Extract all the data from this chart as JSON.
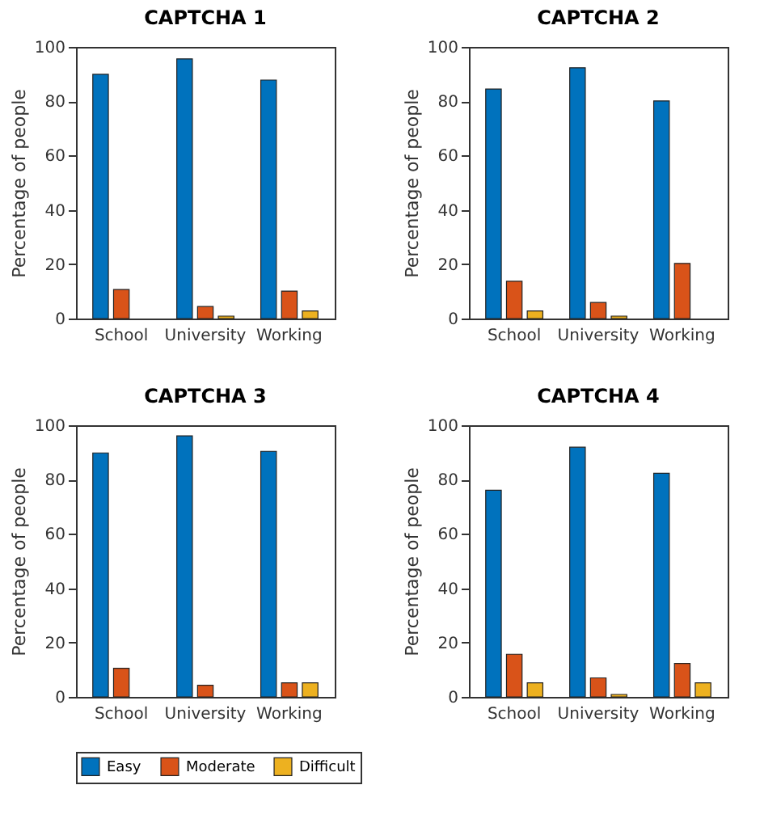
{
  "chart_data": [
    {
      "type": "bar",
      "title": "CAPTCHA 1",
      "ylabel": "Percentage of people",
      "categories": [
        "School",
        "University",
        "Working"
      ],
      "ylim": [
        0,
        100
      ],
      "yticks": [
        0,
        20,
        40,
        60,
        80,
        100
      ],
      "series": [
        {
          "color": "#0072bd",
          "values": [
            89.9,
            95.6,
            87.8
          ]
        },
        {
          "color": "#d95319",
          "values": [
            10.7,
            4.4,
            10.1
          ]
        },
        {
          "color": "#edb120",
          "values": [
            null,
            0.9,
            2.8
          ]
        }
      ]
    },
    {
      "type": "bar",
      "title": "CAPTCHA 2",
      "ylabel": "Percentage of people",
      "categories": [
        "School",
        "University",
        "Working"
      ],
      "ylim": [
        0,
        100
      ],
      "yticks": [
        0,
        20,
        40,
        60,
        80,
        100
      ],
      "series": [
        {
          "color": "#0072bd",
          "values": [
            84.5,
            92.3,
            80.1
          ]
        },
        {
          "color": "#d95319",
          "values": [
            13.7,
            5.9,
            20.3
          ]
        },
        {
          "color": "#edb120",
          "values": [
            2.8,
            0.9,
            null
          ]
        }
      ]
    },
    {
      "type": "bar",
      "title": "CAPTCHA 3",
      "ylabel": "Percentage of people",
      "categories": [
        "School",
        "University",
        "Working"
      ],
      "ylim": [
        0,
        100
      ],
      "yticks": [
        0,
        20,
        40,
        60,
        80,
        100
      ],
      "series": [
        {
          "color": "#0072bd",
          "values": [
            89.8,
            96.1,
            90.4
          ]
        },
        {
          "color": "#d95319",
          "values": [
            10.5,
            4.3,
            5.2
          ]
        },
        {
          "color": "#edb120",
          "values": [
            null,
            null,
            5.2
          ]
        }
      ]
    },
    {
      "type": "bar",
      "title": "CAPTCHA 4",
      "ylabel": "Percentage of people",
      "categories": [
        "School",
        "University",
        "Working"
      ],
      "ylim": [
        0,
        100
      ],
      "yticks": [
        0,
        20,
        40,
        60,
        80,
        100
      ],
      "legend": "bottom",
      "series": [
        {
          "name": "Easy",
          "color": "#0072bd",
          "values": [
            76.1,
            91.9,
            82.3
          ]
        },
        {
          "name": "Moderate",
          "color": "#d95319",
          "values": [
            15.7,
            7.0,
            12.3
          ]
        },
        {
          "name": "Difficult",
          "color": "#edb120",
          "values": [
            5.2,
            0.9,
            5.2
          ]
        }
      ]
    }
  ]
}
